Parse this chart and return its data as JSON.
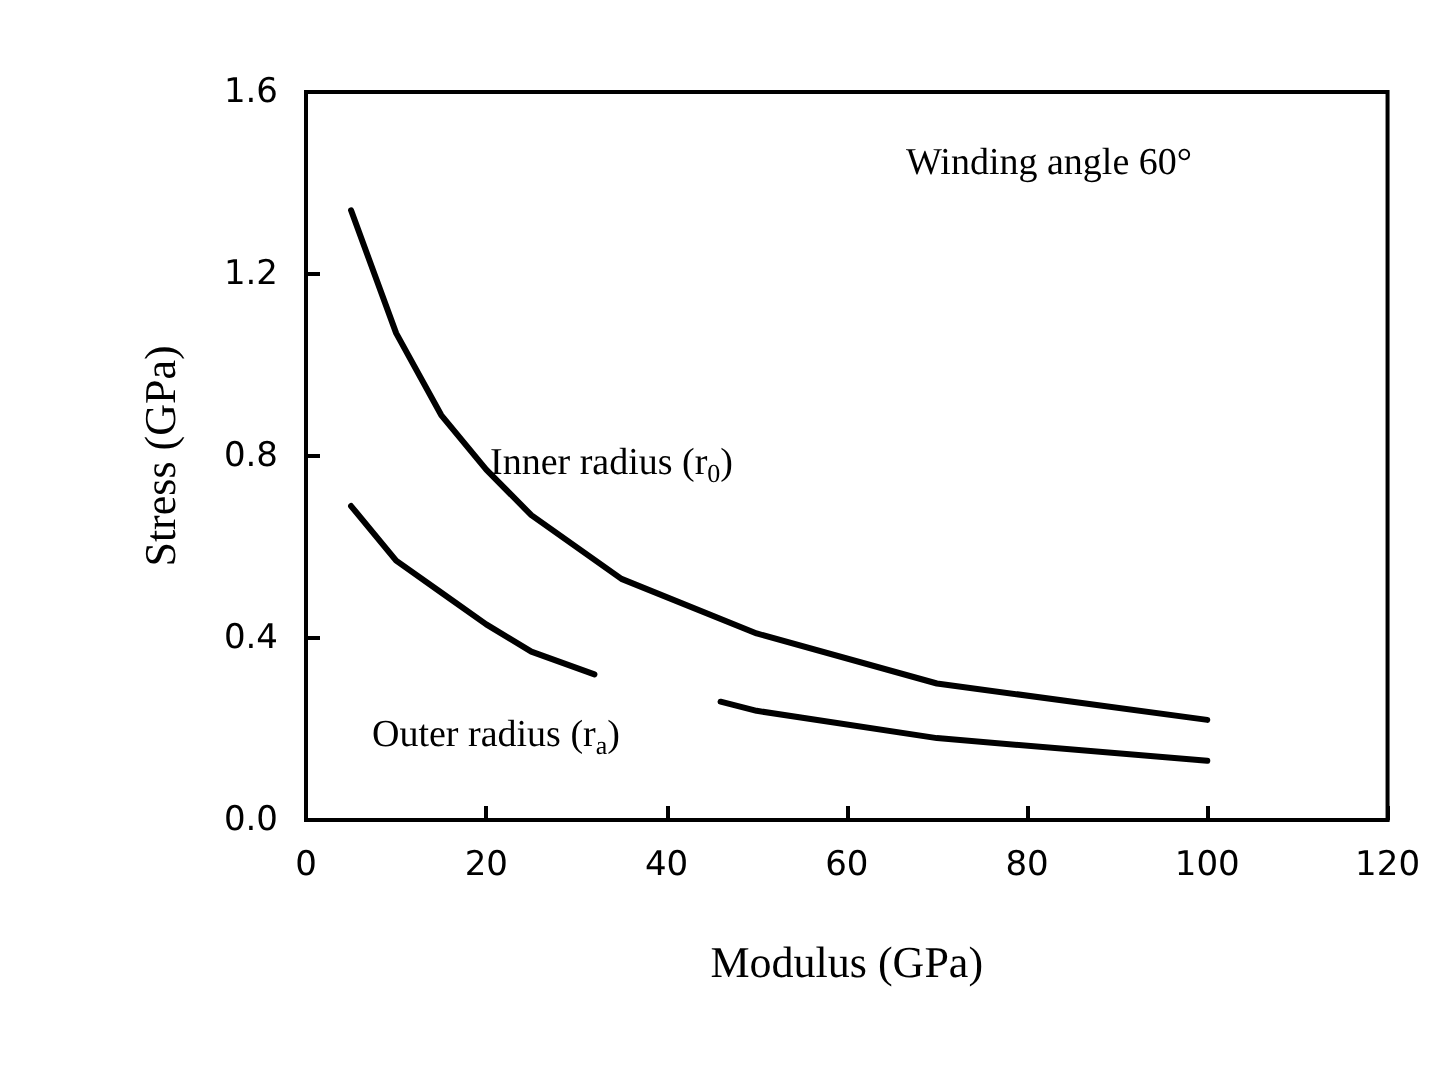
{
  "chart_data": {
    "type": "line",
    "xlabel": "Modulus (GPa)",
    "ylabel": "Stress (GPa)",
    "xlim": [
      0,
      120
    ],
    "xticks": [
      0,
      20,
      40,
      60,
      80,
      100,
      120
    ],
    "ylim": [
      0,
      1.6
    ],
    "yticks": [
      {
        "value": 0,
        "label": "0.0"
      },
      {
        "value": 0.4,
        "label": "0.4"
      },
      {
        "value": 0.8,
        "label": "0.8"
      },
      {
        "value": 1.2,
        "label": "1.2"
      },
      {
        "value": 1.6,
        "label": "1.6"
      }
    ],
    "grid": false,
    "marker": "none",
    "line_style": "solid",
    "series": [
      {
        "color": "#000000",
        "x": [
          5,
          10,
          15,
          20,
          25,
          35,
          50,
          70,
          100
        ],
        "values": [
          1.34,
          1.07,
          0.89,
          0.77,
          0.67,
          0.53,
          0.41,
          0.3,
          0.22
        ]
      },
      {
        "color": "#000000",
        "x": [
          5,
          10,
          15,
          20,
          25,
          32,
          39,
          46,
          50,
          70,
          100
        ],
        "values": [
          0.69,
          0.57,
          0.5,
          0.43,
          0.37,
          0.32,
          null,
          0.26,
          0.24,
          0.18,
          0.13
        ]
      }
    ],
    "annotations": [
      "Inner radius (r$_{0}$)",
      "Outer radius (r$_{a}$)",
      "Winding angle 60°"
    ]
  }
}
